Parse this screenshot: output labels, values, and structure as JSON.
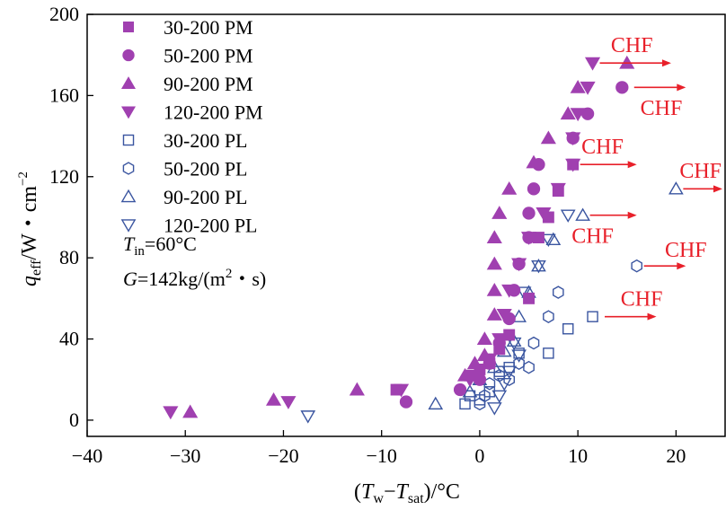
{
  "chart_data": {
    "type": "scatter",
    "xlabel": {
      "open": "(",
      "T1": "T",
      "s1": "w",
      "minus": "−",
      "T2": "T",
      "s2": "sat",
      "close": ")",
      "unit": "/°C"
    },
    "ylabel": {
      "q": "q",
      "sub": "eff",
      "rest": "/W・cm",
      "sup": "−2"
    },
    "xlim": [
      -40,
      25
    ],
    "ylim": [
      -8,
      200
    ],
    "xticks": [
      -40,
      -30,
      -20,
      -10,
      0,
      10,
      20
    ],
    "yticks": [
      0,
      40,
      80,
      120,
      160,
      200
    ],
    "colors": {
      "pm": "#a040b0",
      "pl": "#3a55a0",
      "chf": "#e8202a"
    },
    "conditions": {
      "tin": {
        "T": "T",
        "sub": "in",
        "rest": "=60°C"
      },
      "g": {
        "G": "G",
        "rest1": "=142kg/(m",
        "sup": "2",
        "rest2": "・s)"
      }
    },
    "series": [
      {
        "name": "30-200 PM",
        "marker": "square",
        "filled": true,
        "points": [
          [
            -8.5,
            15
          ],
          [
            -1,
            22
          ],
          [
            0,
            25
          ],
          [
            1,
            28
          ],
          [
            2,
            35
          ],
          [
            3,
            42
          ],
          [
            5,
            60
          ],
          [
            6,
            90
          ],
          [
            7,
            100
          ],
          [
            8,
            113
          ],
          [
            9.5,
            126
          ]
        ]
      },
      {
        "name": "50-200  PM",
        "marker": "circle",
        "filled": true,
        "points": [
          [
            -7.5,
            9
          ],
          [
            -2,
            15
          ],
          [
            0,
            20
          ],
          [
            1,
            28
          ],
          [
            2,
            38
          ],
          [
            3,
            50
          ],
          [
            3.5,
            64
          ],
          [
            4,
            77
          ],
          [
            5,
            90
          ],
          [
            5,
            102
          ],
          [
            5.5,
            114
          ],
          [
            6,
            126
          ],
          [
            9.5,
            139
          ],
          [
            11,
            151
          ],
          [
            14.5,
            164
          ]
        ]
      },
      {
        "name": "90-200  PM",
        "marker": "triangle-up",
        "filled": true,
        "points": [
          [
            -29.5,
            4
          ],
          [
            -21,
            10
          ],
          [
            -12.5,
            15
          ],
          [
            -1.5,
            22
          ],
          [
            -0.5,
            28
          ],
          [
            0.5,
            32
          ],
          [
            0.5,
            40
          ],
          [
            1.5,
            52
          ],
          [
            1.5,
            64
          ],
          [
            1.5,
            77
          ],
          [
            1.5,
            90
          ],
          [
            2,
            102
          ],
          [
            3,
            114
          ],
          [
            5.5,
            127
          ],
          [
            7,
            139
          ],
          [
            9,
            151
          ],
          [
            10,
            164
          ],
          [
            15,
            176
          ]
        ]
      },
      {
        "name": "120-200  PM",
        "marker": "triangle-down",
        "filled": true,
        "points": [
          [
            -31.5,
            4
          ],
          [
            -19.5,
            9
          ],
          [
            -8,
            15
          ],
          [
            -1,
            20
          ],
          [
            0,
            25
          ],
          [
            1,
            30
          ],
          [
            2,
            40
          ],
          [
            2.5,
            52
          ],
          [
            3,
            64
          ],
          [
            4,
            77
          ],
          [
            5,
            90
          ],
          [
            6.5,
            102
          ],
          [
            8,
            114
          ],
          [
            9.5,
            126
          ],
          [
            9.5,
            139
          ],
          [
            10,
            151
          ],
          [
            11,
            164
          ],
          [
            11.5,
            176
          ]
        ]
      }
    ],
    "pl_series": [
      {
        "name": "30-200 PL",
        "marker": "square",
        "filled": false,
        "points": [
          [
            -1.5,
            8
          ],
          [
            -1,
            12
          ],
          [
            0,
            10
          ],
          [
            1,
            14
          ],
          [
            2,
            24
          ],
          [
            3,
            26
          ],
          [
            4,
            33
          ],
          [
            7,
            33
          ],
          [
            9,
            45
          ],
          [
            11.5,
            51
          ]
        ]
      },
      {
        "name": "50-200 PL",
        "marker": "hexagon",
        "filled": false,
        "points": [
          [
            0,
            8
          ],
          [
            0.5,
            12
          ],
          [
            1,
            18
          ],
          [
            2,
            22
          ],
          [
            3,
            20
          ],
          [
            4,
            28
          ],
          [
            5,
            26
          ],
          [
            5.5,
            38
          ],
          [
            7,
            51
          ],
          [
            8,
            63
          ],
          [
            16,
            76
          ]
        ]
      },
      {
        "name": "90-200 PL",
        "marker": "triangle-up",
        "filled": false,
        "points": [
          [
            -4.5,
            8
          ],
          [
            -1,
            14
          ],
          [
            0,
            20
          ],
          [
            1.5,
            26
          ],
          [
            2.5,
            34
          ],
          [
            3.5,
            39
          ],
          [
            4,
            51
          ],
          [
            5,
            63
          ],
          [
            6,
            76
          ],
          [
            7.5,
            89
          ],
          [
            10.5,
            101
          ],
          [
            20,
            114
          ]
        ]
      },
      {
        "name": "120-200 PL",
        "marker": "triangle-down",
        "filled": false,
        "points": [
          [
            -17.5,
            2
          ],
          [
            1.5,
            6
          ],
          [
            2,
            12
          ],
          [
            2.5,
            18
          ],
          [
            3,
            24
          ],
          [
            4,
            32
          ],
          [
            3.5,
            38
          ],
          [
            4.5,
            63
          ],
          [
            6,
            76
          ],
          [
            7,
            89
          ],
          [
            9,
            101
          ]
        ]
      }
    ],
    "chf_annotations": [
      {
        "label": "CHF",
        "arrow_from": [
          11.5,
          176
        ],
        "arrow_to": [
          19.5,
          176
        ],
        "text_at": [
          15.5,
          185
        ]
      },
      {
        "label": "CHF",
        "arrow_from": [
          15,
          164
        ],
        "arrow_to": [
          21,
          164
        ],
        "text_at": [
          18.5,
          154
        ]
      },
      {
        "label": "CHF",
        "arrow_from": [
          9.5,
          126
        ],
        "arrow_to": [
          16,
          126
        ],
        "text_at": [
          12.5,
          135
        ]
      },
      {
        "label": "CHF",
        "arrow_from": [
          20,
          114
        ],
        "arrow_to": [
          25,
          114
        ],
        "text_at": [
          22.5,
          123
        ]
      },
      {
        "label": "CHF",
        "arrow_from": [
          10.5,
          101
        ],
        "arrow_to": [
          16,
          101
        ],
        "text_at": [
          11.5,
          91
        ]
      },
      {
        "label": "CHF",
        "arrow_from": [
          16,
          76
        ],
        "arrow_to": [
          21,
          76
        ],
        "text_at": [
          21,
          84
        ]
      },
      {
        "label": "CHF",
        "arrow_from": [
          12,
          51
        ],
        "arrow_to": [
          18,
          51
        ],
        "text_at": [
          16.5,
          60
        ]
      }
    ]
  }
}
